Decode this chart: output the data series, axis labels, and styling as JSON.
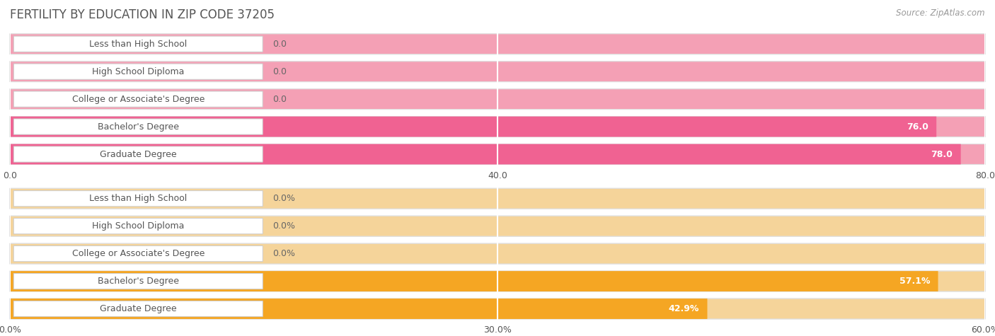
{
  "title": "FERTILITY BY EDUCATION IN ZIP CODE 37205",
  "source": "Source: ZipAtlas.com",
  "top_chart": {
    "categories": [
      "Less than High School",
      "High School Diploma",
      "College or Associate's Degree",
      "Bachelor's Degree",
      "Graduate Degree"
    ],
    "values": [
      0.0,
      0.0,
      0.0,
      76.0,
      78.0
    ],
    "bar_color_full": "#F4A0B5",
    "bar_color_main": "#F06292",
    "xlim": [
      0,
      80.0
    ],
    "xticks": [
      0.0,
      40.0,
      80.0
    ],
    "xtick_labels": [
      "0.0",
      "40.0",
      "80.0"
    ],
    "value_labels": [
      "0.0",
      "0.0",
      "0.0",
      "76.0",
      "78.0"
    ]
  },
  "bottom_chart": {
    "categories": [
      "Less than High School",
      "High School Diploma",
      "College or Associate's Degree",
      "Bachelor's Degree",
      "Graduate Degree"
    ],
    "values": [
      0.0,
      0.0,
      0.0,
      57.1,
      42.9
    ],
    "bar_color_full": "#F5D49A",
    "bar_color_main": "#F5A623",
    "xlim": [
      0,
      60.0
    ],
    "xticks": [
      0.0,
      30.0,
      60.0
    ],
    "xtick_labels": [
      "0.0%",
      "30.0%",
      "60.0%"
    ],
    "value_labels": [
      "0.0%",
      "0.0%",
      "0.0%",
      "57.1%",
      "42.9%"
    ]
  },
  "bg_color": "#FFFFFF",
  "row_bg_color": "#F5F5F5",
  "row_border_color": "#E0E0E0",
  "grid_color": "#FFFFFF",
  "title_color": "#555555",
  "label_text_color": "#555555",
  "value_text_color_inside": "#FFFFFF",
  "value_text_color_outside": "#666666",
  "label_box_color": "#FFFFFF",
  "label_box_border": "#CCCCCC",
  "bar_height": 0.72,
  "title_fontsize": 12,
  "label_fontsize": 9,
  "value_fontsize": 9,
  "tick_fontsize": 9
}
